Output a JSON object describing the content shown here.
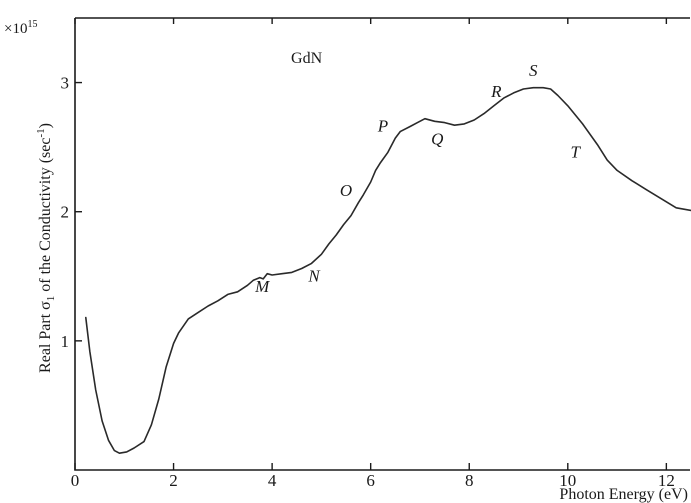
{
  "chart_data": {
    "type": "line",
    "title": "",
    "xlabel": "Photon Energy (eV)",
    "ylabel_main": "Real Part σ",
    "ylabel_sub": "1",
    "ylabel_rest": " of the Conductivity (sec",
    "ylabel_sup": "-1",
    "ylabel_end": ")",
    "y_multiplier_base": "×10",
    "y_multiplier_exp": "15",
    "xlim": [
      0,
      12.5
    ],
    "ylim": [
      0,
      3.5
    ],
    "xticks": [
      {
        "value": 0,
        "label": "0"
      },
      {
        "value": 2,
        "label": "2"
      },
      {
        "value": 4,
        "label": "4"
      },
      {
        "value": 6,
        "label": "6"
      },
      {
        "value": 8,
        "label": "8"
      },
      {
        "value": 10,
        "label": "10"
      },
      {
        "value": 12,
        "label": "12"
      }
    ],
    "yticks": [
      {
        "value": 1,
        "label": "1"
      },
      {
        "value": 2,
        "label": "2"
      },
      {
        "value": 3,
        "label": "3"
      }
    ],
    "grid": false,
    "series": [
      {
        "label": "GdN",
        "color": "#2a2a2a",
        "points": [
          [
            0.22,
            1.18
          ],
          [
            0.3,
            0.92
          ],
          [
            0.42,
            0.62
          ],
          [
            0.55,
            0.38
          ],
          [
            0.68,
            0.23
          ],
          [
            0.8,
            0.15
          ],
          [
            0.9,
            0.13
          ],
          [
            1.05,
            0.14
          ],
          [
            1.2,
            0.17
          ],
          [
            1.4,
            0.22
          ],
          [
            1.55,
            0.35
          ],
          [
            1.7,
            0.55
          ],
          [
            1.85,
            0.8
          ],
          [
            2.0,
            0.98
          ],
          [
            2.1,
            1.06
          ],
          [
            2.3,
            1.17
          ],
          [
            2.5,
            1.22
          ],
          [
            2.7,
            1.27
          ],
          [
            2.9,
            1.31
          ],
          [
            3.1,
            1.36
          ],
          [
            3.3,
            1.38
          ],
          [
            3.5,
            1.43
          ],
          [
            3.62,
            1.47
          ],
          [
            3.75,
            1.49
          ],
          [
            3.82,
            1.48
          ],
          [
            3.9,
            1.52
          ],
          [
            4.0,
            1.51
          ],
          [
            4.2,
            1.52
          ],
          [
            4.4,
            1.53
          ],
          [
            4.6,
            1.56
          ],
          [
            4.8,
            1.6
          ],
          [
            5.0,
            1.67
          ],
          [
            5.15,
            1.75
          ],
          [
            5.3,
            1.82
          ],
          [
            5.45,
            1.9
          ],
          [
            5.6,
            1.97
          ],
          [
            5.75,
            2.07
          ],
          [
            5.85,
            2.13
          ],
          [
            6.0,
            2.23
          ],
          [
            6.1,
            2.32
          ],
          [
            6.2,
            2.38
          ],
          [
            6.35,
            2.46
          ],
          [
            6.5,
            2.57
          ],
          [
            6.6,
            2.62
          ],
          [
            6.8,
            2.66
          ],
          [
            6.95,
            2.69
          ],
          [
            7.1,
            2.72
          ],
          [
            7.3,
            2.7
          ],
          [
            7.5,
            2.69
          ],
          [
            7.7,
            2.67
          ],
          [
            7.9,
            2.68
          ],
          [
            8.1,
            2.71
          ],
          [
            8.3,
            2.76
          ],
          [
            8.5,
            2.82
          ],
          [
            8.7,
            2.88
          ],
          [
            8.9,
            2.92
          ],
          [
            9.1,
            2.95
          ],
          [
            9.3,
            2.96
          ],
          [
            9.5,
            2.96
          ],
          [
            9.65,
            2.95
          ],
          [
            9.8,
            2.9
          ],
          [
            10.0,
            2.82
          ],
          [
            10.3,
            2.68
          ],
          [
            10.6,
            2.52
          ],
          [
            10.8,
            2.4
          ],
          [
            11.0,
            2.32
          ],
          [
            11.3,
            2.24
          ],
          [
            11.6,
            2.17
          ],
          [
            11.9,
            2.1
          ],
          [
            12.2,
            2.03
          ],
          [
            12.5,
            2.01
          ]
        ]
      }
    ],
    "annotations": [
      {
        "text": "GdN",
        "x": 4.7,
        "y": 3.15,
        "italic": false
      },
      {
        "text": "M",
        "x": 3.8,
        "y": 1.38,
        "italic": true
      },
      {
        "text": "N",
        "x": 4.85,
        "y": 1.46,
        "italic": true
      },
      {
        "text": "O",
        "x": 5.5,
        "y": 2.12,
        "italic": true
      },
      {
        "text": "P",
        "x": 6.25,
        "y": 2.62,
        "italic": true
      },
      {
        "text": "Q",
        "x": 7.35,
        "y": 2.52,
        "italic": true
      },
      {
        "text": "R",
        "x": 8.55,
        "y": 2.89,
        "italic": true
      },
      {
        "text": "S",
        "x": 9.3,
        "y": 3.05,
        "italic": true
      },
      {
        "text": "T",
        "x": 10.15,
        "y": 2.42,
        "italic": true
      }
    ]
  }
}
